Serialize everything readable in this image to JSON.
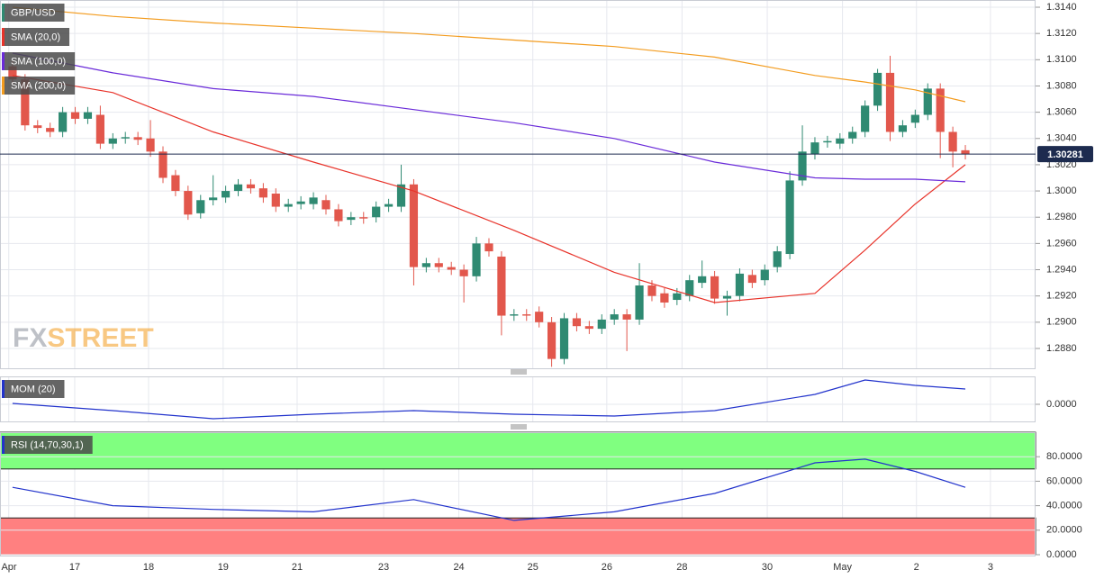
{
  "chart_data": [
    {
      "type": "candlestick",
      "name": "GBP/USD",
      "up_color": "#2f8a72",
      "down_color": "#e2574c",
      "open": [
        1.3095,
        1.3085,
        1.305,
        1.3048,
        1.3045,
        1.306,
        1.3055,
        1.3058,
        1.3036,
        1.304,
        1.3041,
        1.304,
        1.303,
        1.3012,
        1.3,
        1.2983,
        1.2993,
        1.2995,
        1.3,
        1.3005,
        1.3002,
        1.2998,
        1.2988,
        1.299,
        1.299,
        1.2993,
        1.2986,
        1.2978,
        1.298,
        1.298,
        1.2988,
        1.2988,
        1.3005,
        1.2942,
        1.2945,
        1.2942,
        1.294,
        1.2935,
        1.296,
        1.295,
        1.2905,
        1.2906,
        1.2908,
        1.29,
        1.2872,
        1.2903,
        1.2897,
        1.2895,
        1.2902,
        1.2906,
        1.2902,
        1.2928,
        1.2922,
        1.2917,
        1.292,
        1.293,
        1.2935,
        1.2918,
        1.292,
        1.2936,
        1.2932,
        1.2942,
        1.2952,
        1.3008,
        1.3028,
        1.3037,
        1.3036,
        1.304,
        1.3045,
        1.3065,
        1.309,
        1.3045,
        1.3052,
        1.3058,
        1.3078,
        1.3045,
        1.3031
      ],
      "high": [
        1.3099,
        1.3089,
        1.3054,
        1.3052,
        1.3064,
        1.3064,
        1.3064,
        1.3065,
        1.3044,
        1.3045,
        1.3045,
        1.3054,
        1.3034,
        1.3016,
        1.3004,
        1.2997,
        1.3012,
        1.3004,
        1.3009,
        1.3009,
        1.3006,
        1.3002,
        1.2994,
        1.2996,
        1.2999,
        1.2997,
        1.299,
        1.2984,
        1.2984,
        1.2992,
        1.2994,
        1.302,
        1.3009,
        1.2949,
        1.2949,
        1.2946,
        1.2944,
        1.2965,
        1.2964,
        1.2954,
        1.291,
        1.291,
        1.2912,
        1.2904,
        1.2907,
        1.2907,
        1.2901,
        1.2906,
        1.291,
        1.291,
        1.2945,
        1.2932,
        1.2926,
        1.2926,
        1.2936,
        1.2947,
        1.2939,
        1.2924,
        1.2941,
        1.294,
        1.2944,
        1.2958,
        1.3015,
        1.305,
        1.3041,
        1.3042,
        1.3044,
        1.3049,
        1.3069,
        1.3093,
        1.3103,
        1.3054,
        1.3062,
        1.3082,
        1.3082,
        1.3049,
        1.3035
      ],
      "low": [
        1.3081,
        1.3046,
        1.3044,
        1.3041,
        1.3041,
        1.3051,
        1.3051,
        1.3032,
        1.3032,
        1.3036,
        1.3035,
        1.3026,
        1.3006,
        1.2996,
        1.2978,
        1.2979,
        1.2989,
        1.2991,
        1.2996,
        1.2998,
        1.2991,
        1.2984,
        1.2984,
        1.2986,
        1.2986,
        1.2982,
        1.2973,
        1.2974,
        1.2975,
        1.2976,
        1.2984,
        1.2984,
        1.2928,
        1.2938,
        1.2938,
        1.2936,
        1.2915,
        1.2931,
        1.295,
        1.289,
        1.2901,
        1.2901,
        1.2896,
        1.2866,
        1.2868,
        1.2893,
        1.2891,
        1.2891,
        1.2898,
        1.2878,
        1.2898,
        1.2916,
        1.2911,
        1.2913,
        1.2916,
        1.2926,
        1.2914,
        1.2905,
        1.2916,
        1.2926,
        1.2928,
        1.2938,
        1.2948,
        1.3004,
        1.3024,
        1.3033,
        1.3032,
        1.3036,
        1.3041,
        1.3061,
        1.3038,
        1.3041,
        1.3048,
        1.3054,
        1.3025,
        1.3018,
        1.3024
      ],
      "close": [
        1.3085,
        1.305,
        1.3048,
        1.3045,
        1.306,
        1.3055,
        1.306,
        1.3036,
        1.304,
        1.3041,
        1.3039,
        1.303,
        1.301,
        1.3,
        1.2982,
        1.2993,
        1.2995,
        1.3,
        1.3005,
        1.3002,
        1.2995,
        1.2988,
        1.299,
        1.2992,
        1.2995,
        1.2986,
        1.2977,
        1.298,
        1.2979,
        1.2988,
        1.299,
        1.3005,
        1.2942,
        1.2945,
        1.2942,
        1.294,
        1.2935,
        1.296,
        1.2954,
        1.2905,
        1.2906,
        1.2905,
        1.29,
        1.2872,
        1.2903,
        1.2897,
        1.2895,
        1.2902,
        1.2906,
        1.2902,
        1.2928,
        1.292,
        1.2915,
        1.2922,
        1.2932,
        1.2935,
        1.2918,
        1.292,
        1.2937,
        1.293,
        1.294,
        1.2954,
        1.3008,
        1.303,
        1.3037,
        1.3038,
        1.304,
        1.3045,
        1.3065,
        1.309,
        1.3045,
        1.305,
        1.3058,
        1.3078,
        1.3045,
        1.303,
        1.3028
      ],
      "series": [
        {
          "name": "SMA (20,0)",
          "color": "#e8332a",
          "x": [
            0,
            8,
            16,
            24,
            32,
            40,
            48,
            56,
            64,
            68,
            72,
            76
          ],
          "values": [
            1.3088,
            1.3075,
            1.3045,
            1.3022,
            1.3,
            1.297,
            1.2938,
            1.2915,
            1.2922,
            1.2955,
            1.299,
            1.302
          ]
        },
        {
          "name": "SMA (100,0)",
          "color": "#6a2bd9",
          "x": [
            0,
            8,
            16,
            24,
            32,
            40,
            48,
            56,
            64,
            68,
            72,
            76
          ],
          "values": [
            1.3105,
            1.309,
            1.3078,
            1.3072,
            1.3062,
            1.3052,
            1.304,
            1.3022,
            1.301,
            1.3009,
            1.3009,
            1.3007
          ]
        },
        {
          "name": "SMA (200,0)",
          "color": "#f39c1f",
          "x": [
            0,
            8,
            16,
            24,
            32,
            40,
            48,
            56,
            64,
            68,
            72,
            76
          ],
          "values": [
            1.314,
            1.3133,
            1.3128,
            1.3124,
            1.312,
            1.3115,
            1.311,
            1.3102,
            1.3088,
            1.3083,
            1.3077,
            1.3068
          ]
        }
      ],
      "last_price": 1.30281,
      "watermark": [
        "FX",
        "STREET"
      ],
      "xlim": [
        -1,
        81.6
      ],
      "xticks": [
        {
          "value": -0.3,
          "label": "Apr"
        },
        {
          "value": 4.96,
          "label": "17"
        },
        {
          "value": 10.85,
          "label": "18"
        },
        {
          "value": 16.8,
          "label": "19"
        },
        {
          "value": 22.7,
          "label": "21"
        },
        {
          "value": 29.6,
          "label": "23"
        },
        {
          "value": 35.6,
          "label": "24"
        },
        {
          "value": 41.5,
          "label": "25"
        },
        {
          "value": 47.4,
          "label": "26"
        },
        {
          "value": 53.4,
          "label": "28"
        },
        {
          "value": 60.2,
          "label": "30"
        },
        {
          "value": 66.2,
          "label": "May"
        },
        {
          "value": 72.1,
          "label": "2"
        },
        {
          "value": 78,
          "label": "3"
        }
      ],
      "ylim": [
        1.28642,
        1.31455
      ],
      "yticks": [
        {
          "value": 1.288,
          "label": "1.2880"
        },
        {
          "value": 1.29,
          "label": "1.2900"
        },
        {
          "value": 1.292,
          "label": "1.2920"
        },
        {
          "value": 1.294,
          "label": "1.2940"
        },
        {
          "value": 1.296,
          "label": "1.2960"
        },
        {
          "value": 1.298,
          "label": "1.2980"
        },
        {
          "value": 1.3,
          "label": "1.3000"
        },
        {
          "value": 1.302,
          "label": "1.3020"
        },
        {
          "value": 1.304,
          "label": "1.3040"
        },
        {
          "value": 1.306,
          "label": "1.3060"
        },
        {
          "value": 1.308,
          "label": "1.3080"
        },
        {
          "value": 1.31,
          "label": "1.3100"
        },
        {
          "value": 1.312,
          "label": "1.3120"
        },
        {
          "value": 1.314,
          "label": "1.3140"
        }
      ]
    },
    {
      "type": "line",
      "series": [
        {
          "name": "MOM (20)",
          "color": "#2233cc",
          "x": [
            0,
            8,
            16,
            24,
            32,
            40,
            48,
            56,
            64,
            68,
            72,
            76
          ],
          "values": [
            0.0004,
            -0.0028,
            -0.0064,
            -0.0044,
            -0.0028,
            -0.0044,
            -0.0052,
            -0.0028,
            0.0044,
            0.0108,
            0.0084,
            0.0068
          ]
        }
      ],
      "ylim": [
        -0.0076,
        0.0124
      ],
      "yticks": [
        {
          "value": 0,
          "label": "0.0000"
        }
      ]
    },
    {
      "type": "line",
      "series": [
        {
          "name": "RSI (14,70,30,1)",
          "color": "#2233cc",
          "x": [
            0,
            8,
            16,
            24,
            32,
            40,
            48,
            56,
            64,
            68,
            72,
            76
          ],
          "values": [
            55,
            40,
            37,
            35,
            45,
            28,
            35,
            50,
            75,
            78,
            68,
            55
          ]
        }
      ],
      "overbought": 70,
      "oversold": 30,
      "overbought_color": "#80ff80",
      "oversold_color": "#ff8080",
      "ylim": [
        0,
        100
      ],
      "yticks": [
        {
          "value": 0,
          "label": "0.0000"
        },
        {
          "value": 20,
          "label": "20.0000"
        },
        {
          "value": 40,
          "label": "40.0000"
        },
        {
          "value": 60,
          "label": "60.0000"
        },
        {
          "value": 80,
          "label": "80.0000"
        }
      ]
    }
  ]
}
